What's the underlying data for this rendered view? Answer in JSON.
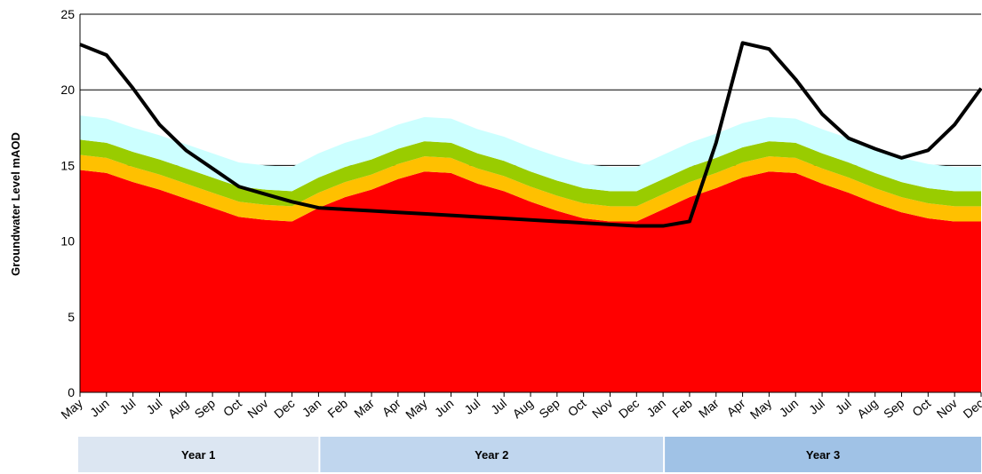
{
  "chart_data": {
    "type": "area",
    "y_label": "Groundwater Level mAOD",
    "categories": [
      "May",
      "Jun",
      "Jul",
      "Jul",
      "Aug",
      "Sep",
      "Oct",
      "Nov",
      "Dec",
      "Jan",
      "Feb",
      "Mar",
      "Apr",
      "May",
      "Jun",
      "Jul",
      "Jul",
      "Aug",
      "Sep",
      "Oct",
      "Nov",
      "Dec",
      "Jan",
      "Feb",
      "Mar",
      "Apr",
      "May",
      "Jun",
      "Jul",
      "Jul",
      "Aug",
      "Sep",
      "Oct",
      "Nov",
      "Dec"
    ],
    "series": [
      {
        "color": "#ff0000",
        "values": [
          14.7,
          14.5,
          13.9,
          13.4,
          12.8,
          12.2,
          11.6,
          11.4,
          11.3,
          12.2,
          12.9,
          13.4,
          14.1,
          14.6,
          14.5,
          13.8,
          13.3,
          12.6,
          12.0,
          11.5,
          11.3,
          11.3,
          12.1,
          12.9,
          13.5,
          14.2,
          14.6,
          14.5,
          13.8,
          13.2,
          12.5,
          11.9,
          11.5,
          11.3,
          11.3
        ]
      },
      {
        "color": "#ffc000",
        "values": [
          1,
          1,
          1,
          1,
          1,
          1,
          1,
          1,
          1,
          1,
          1,
          1,
          1,
          1,
          1,
          1,
          1,
          1,
          1,
          1,
          1,
          1,
          1,
          1,
          1,
          1,
          1,
          1,
          1,
          1,
          1,
          1,
          1,
          1,
          1
        ]
      },
      {
        "color": "#99cc00",
        "values": [
          1,
          1,
          1,
          1,
          1,
          1,
          1,
          1,
          1,
          1,
          1,
          1,
          1,
          1,
          1,
          1,
          1,
          1,
          1,
          1,
          1,
          1,
          1,
          1,
          1,
          1,
          1,
          1,
          1,
          1,
          1,
          1,
          1,
          1,
          1
        ]
      },
      {
        "color": "#ccffff",
        "values": [
          1.6,
          1.6,
          1.6,
          1.6,
          1.6,
          1.6,
          1.6,
          1.6,
          1.6,
          1.6,
          1.6,
          1.6,
          1.6,
          1.6,
          1.6,
          1.6,
          1.6,
          1.6,
          1.6,
          1.6,
          1.6,
          1.6,
          1.6,
          1.6,
          1.6,
          1.6,
          1.6,
          1.6,
          1.6,
          1.6,
          1.6,
          1.6,
          1.6,
          1.6,
          1.6
        ]
      },
      {
        "type": "line",
        "color": "#000000",
        "values": [
          23.0,
          22.3,
          20.1,
          17.7,
          16.0,
          14.8,
          13.6,
          13.1,
          12.6,
          12.2,
          12.1,
          12.0,
          11.9,
          11.8,
          11.7,
          11.6,
          11.5,
          11.4,
          11.3,
          11.2,
          11.1,
          11.0,
          11.0,
          11.3,
          16.5,
          23.1,
          22.7,
          20.7,
          18.4,
          16.8,
          16.1,
          15.5,
          16.0,
          17.7,
          20.1
        ]
      }
    ],
    "ylim": [
      0,
      25
    ],
    "yticks": [
      0,
      5,
      10,
      15,
      20,
      25
    ],
    "grid": true,
    "periods": [
      {
        "label": "Year 1",
        "start": 0,
        "end": 9,
        "color": "#dce6f2"
      },
      {
        "label": "Year 2",
        "start": 9,
        "end": 22,
        "color": "#c0d6ee"
      },
      {
        "label": "Year 3",
        "start": 22,
        "end": 34,
        "color": "#a0c2e6"
      }
    ]
  }
}
